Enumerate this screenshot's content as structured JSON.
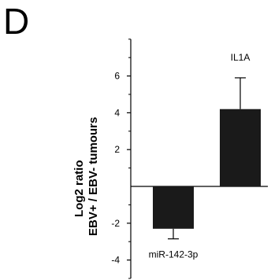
{
  "panel": "D",
  "chart_data": {
    "type": "bar",
    "ylabel_lines": [
      "Log2 ratio",
      "EBV+ / EBV- tumours"
    ],
    "ylim": [
      -5,
      8
    ],
    "yticks": [
      -4,
      -2,
      2,
      4,
      6
    ],
    "grid": false,
    "categories": [
      "miR-142-3p",
      "IL1A"
    ],
    "values": [
      -2.3,
      4.2
    ],
    "errors": [
      0.55,
      1.7
    ],
    "bar_color": "#1a1a1a"
  }
}
